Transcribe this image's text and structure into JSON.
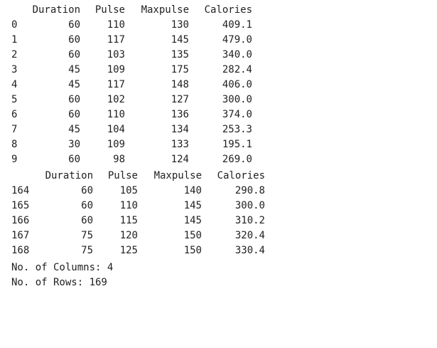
{
  "head_table": {
    "columns": [
      "Duration",
      "Pulse",
      "Maxpulse",
      "Calories"
    ],
    "rows": [
      [
        "0",
        "60",
        "110",
        "130",
        "409.1"
      ],
      [
        "1",
        "60",
        "117",
        "145",
        "479.0"
      ],
      [
        "2",
        "60",
        "103",
        "135",
        "340.0"
      ],
      [
        "3",
        "45",
        "109",
        "175",
        "282.4"
      ],
      [
        "4",
        "45",
        "117",
        "148",
        "406.0"
      ],
      [
        "5",
        "60",
        "102",
        "127",
        "300.0"
      ],
      [
        "6",
        "60",
        "110",
        "136",
        "374.0"
      ],
      [
        "7",
        "45",
        "104",
        "134",
        "253.3"
      ],
      [
        "8",
        "30",
        "109",
        "133",
        "195.1"
      ],
      [
        "9",
        "60",
        "98",
        "124",
        "269.0"
      ]
    ]
  },
  "tail_table": {
    "columns": [
      "Duration",
      "Pulse",
      "Maxpulse",
      "Calories"
    ],
    "rows": [
      [
        "164",
        "60",
        "105",
        "140",
        "290.8"
      ],
      [
        "165",
        "60",
        "110",
        "145",
        "300.0"
      ],
      [
        "166",
        "60",
        "115",
        "145",
        "310.2"
      ],
      [
        "167",
        "75",
        "120",
        "150",
        "320.4"
      ],
      [
        "168",
        "75",
        "125",
        "150",
        "330.4"
      ]
    ]
  },
  "summary": {
    "columns_line": "No. of Columns: 4",
    "rows_line": "No. of Rows: 169"
  }
}
